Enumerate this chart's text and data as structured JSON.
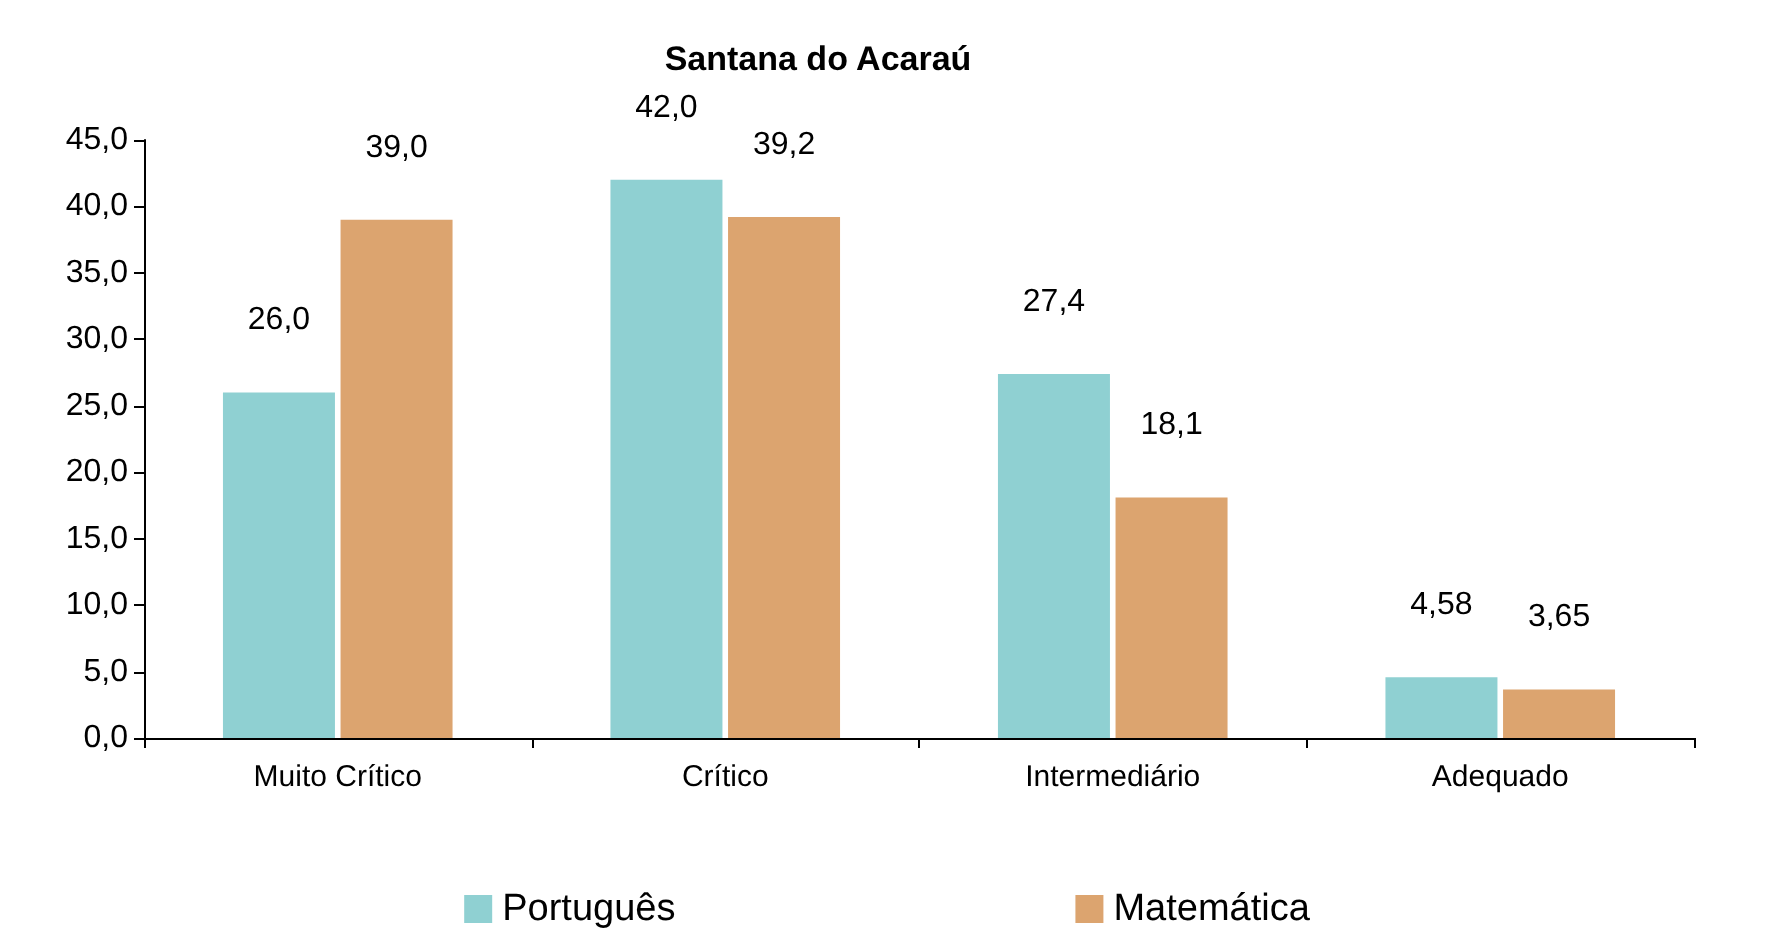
{
  "chart_data": {
    "type": "bar",
    "title": "Santana do Acaraú",
    "categories": [
      "Muito Crítico",
      "Crítico",
      "Intermediário",
      "Adequado"
    ],
    "series": [
      {
        "name": "Português",
        "color": "#8fd0d2",
        "values": [
          26.0,
          42.0,
          27.4,
          4.58
        ],
        "value_labels": [
          "26,0",
          "42,0",
          "27,4",
          "4,58"
        ]
      },
      {
        "name": "Matemática",
        "color": "#dca46f",
        "values": [
          39.0,
          39.2,
          18.1,
          3.65
        ],
        "value_labels": [
          "39,0",
          "39,2",
          "18,1",
          "3,65"
        ]
      }
    ],
    "ylim": [
      0,
      45
    ],
    "yticks": [
      {
        "value": 0,
        "label": "0,0"
      },
      {
        "value": 5,
        "label": "5,0"
      },
      {
        "value": 10,
        "label": "10,0"
      },
      {
        "value": 15,
        "label": "15,0"
      },
      {
        "value": 20,
        "label": "20,0"
      },
      {
        "value": 25,
        "label": "25,0"
      },
      {
        "value": 30,
        "label": "30,0"
      },
      {
        "value": 35,
        "label": "35,0"
      },
      {
        "value": 40,
        "label": "40,0"
      },
      {
        "value": 45,
        "label": "45,0"
      }
    ],
    "grid": false,
    "legend": "bottom"
  }
}
